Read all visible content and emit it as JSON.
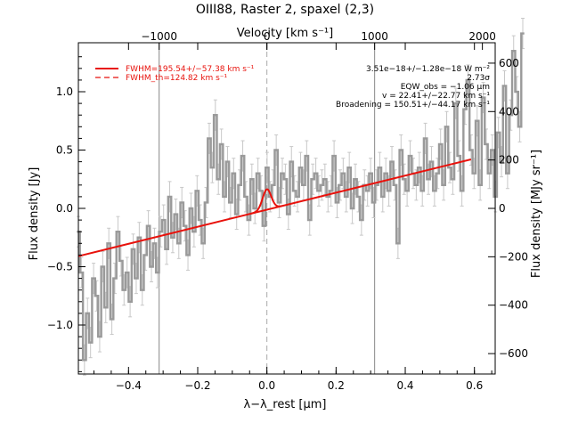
{
  "chart_data": {
    "type": "line",
    "title": "OIII88, Raster 2, spaxel (2,3)",
    "xlabel": "λ−λ_rest [μm]",
    "ylabel": "Flux density [Jy]",
    "top_xlabel": "Velocity [km s⁻¹]",
    "right_ylabel": "Flux density [MJy sr⁻¹]",
    "xlim": [
      -0.545,
      0.66
    ],
    "ylim": [
      -1.42,
      1.42
    ],
    "x_ticks": [
      -0.4,
      -0.2,
      0.0,
      0.2,
      0.4,
      0.6
    ],
    "x_tick_labels": [
      "−0.4",
      "−0.2",
      "0.0",
      "0.2",
      "0.4",
      "0.6"
    ],
    "y_ticks": [
      -1.0,
      -0.5,
      0.0,
      0.5,
      1.0
    ],
    "y_tick_labels": [
      "−1.0",
      "−0.5",
      "0.0",
      "0.5",
      "1.0"
    ],
    "top_ticks": [
      {
        "label": "−1000",
        "x": -0.3115
      },
      {
        "label": "0",
        "x": 0.0
      },
      {
        "label": "1000",
        "x": 0.3115
      },
      {
        "label": "2000",
        "x": 0.623
      }
    ],
    "right_ticks": [
      {
        "label": "−600",
        "y": -1.245
      },
      {
        "label": "−400",
        "y": -0.83
      },
      {
        "label": "−200",
        "y": -0.415
      },
      {
        "label": "0",
        "y": 0.0
      },
      {
        "label": "200",
        "y": 0.415
      },
      {
        "label": "400",
        "y": 0.83
      },
      {
        "label": "600",
        "y": 1.245
      }
    ],
    "vertical_lines": [
      {
        "x": -0.3115,
        "style": "solid"
      },
      {
        "x": 0.0,
        "style": "dashed"
      },
      {
        "x": 0.3115,
        "style": "solid"
      }
    ],
    "legend": [
      {
        "label": "FWHM=195.54+/−57.38 km s⁻¹",
        "style": "solid"
      },
      {
        "label": "FWHM_th=124.82 km s⁻¹",
        "style": "dashed"
      }
    ],
    "annotations": [
      "3.51e−18+/−1.28e−18 W m⁻²",
      "2.73σ",
      "EQW_obs = −1.06 μm",
      "v = 22.41+/−22.77 km s⁻¹",
      "Broadening = 150.51+/−44.17 km s⁻¹"
    ],
    "series": [
      {
        "name": "data",
        "x_start": -0.545,
        "x_step": 0.0088,
        "values": [
          -0.2,
          -0.55,
          -1.3,
          -0.9,
          -1.15,
          -0.6,
          -0.75,
          -1.1,
          -0.5,
          -0.85,
          -0.3,
          -0.95,
          -0.6,
          -0.2,
          -0.45,
          -0.7,
          -0.55,
          -0.8,
          -0.35,
          -0.6,
          -0.25,
          -0.7,
          -0.4,
          -0.15,
          -0.5,
          -0.3,
          -0.55,
          -0.2,
          -0.1,
          -0.35,
          0.1,
          -0.25,
          -0.05,
          -0.3,
          0.05,
          -0.15,
          -0.4,
          0.0,
          -0.2,
          0.15,
          -0.1,
          -0.3,
          0.05,
          0.6,
          0.35,
          0.8,
          0.25,
          0.55,
          0.1,
          0.4,
          0.05,
          0.3,
          -0.05,
          0.2,
          0.45,
          0.1,
          -0.1,
          0.25,
          0.0,
          0.3,
          0.15,
          -0.15,
          0.35,
          0.1,
          0.2,
          0.5,
          0.05,
          0.3,
          0.25,
          -0.05,
          0.4,
          0.15,
          0.1,
          0.35,
          0.2,
          0.45,
          -0.1,
          0.25,
          0.3,
          0.15,
          0.2,
          0.25,
          0.1,
          0.15,
          0.45,
          0.05,
          0.2,
          0.3,
          0.1,
          0.35,
          0.0,
          0.25,
          0.1,
          -0.1,
          0.2,
          0.15,
          0.3,
          0.05,
          0.2,
          0.35,
          0.1,
          0.3,
          0.15,
          0.4,
          0.2,
          -0.3,
          0.5,
          0.25,
          0.15,
          0.45,
          0.3,
          0.2,
          0.35,
          0.15,
          0.6,
          0.25,
          0.4,
          0.15,
          0.3,
          0.55,
          0.2,
          0.7,
          0.35,
          0.25,
          0.9,
          0.45,
          0.15,
          0.85,
          1.1,
          0.5,
          0.3,
          0.75,
          0.2,
          0.95,
          0.55,
          0.3,
          0.5,
          0.1,
          0.65,
          0.4,
          1.05,
          0.3,
          0.8,
          1.35,
          1.0,
          0.7,
          1.5
        ]
      },
      {
        "name": "fit",
        "line": {
          "x0": -0.545,
          "y0": -0.41,
          "x1": 0.59,
          "y1": 0.42
        },
        "gaussian": {
          "center": 0.0,
          "amplitude": 0.175,
          "sigma": 0.0125
        }
      }
    ]
  }
}
